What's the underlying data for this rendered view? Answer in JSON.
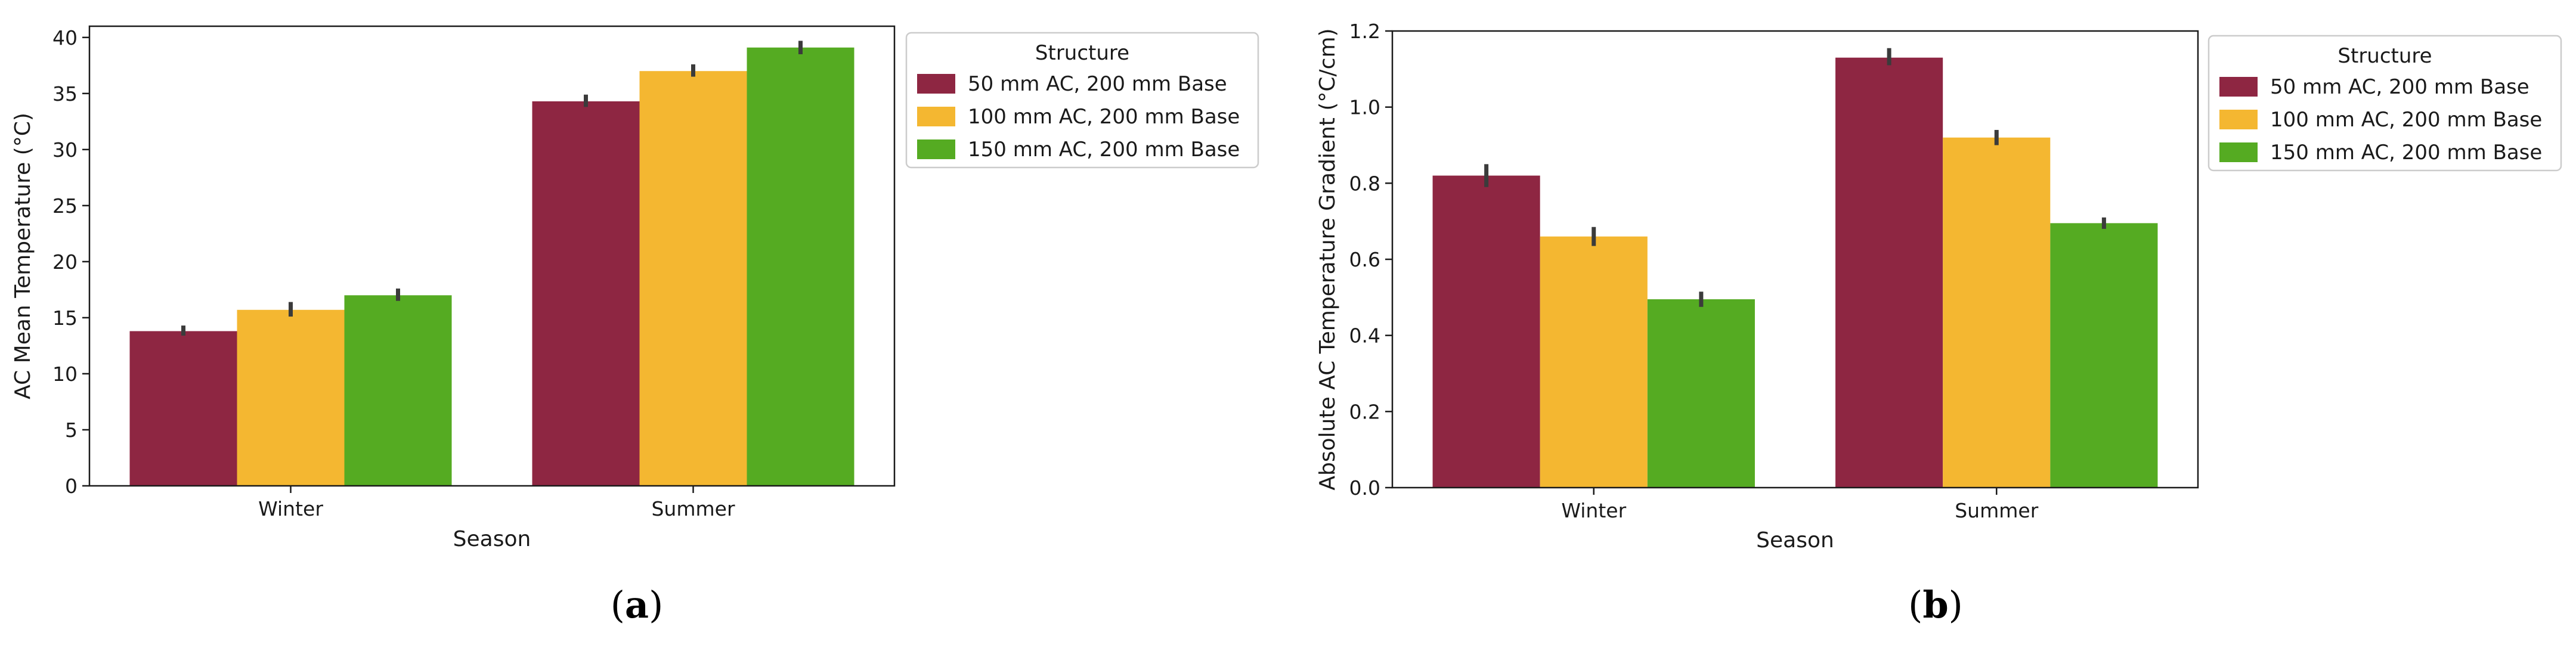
{
  "colors": {
    "structure_50": "#8e2642",
    "structure_100": "#f4b731",
    "structure_150": "#55ab22",
    "error_bar": "#3b3b3b",
    "axes": "#1a1a1a"
  },
  "panel_labels": [
    {
      "open": "(",
      "letter": "a",
      "close": ")"
    },
    {
      "open": "(",
      "letter": "b",
      "close": ")"
    }
  ],
  "chart_data": [
    {
      "type": "bar",
      "panel": "a",
      "xlabel": "Season",
      "ylabel": "AC Mean Temperature (°C)",
      "ylim": [
        0,
        41
      ],
      "yticks": [
        0,
        5,
        10,
        15,
        20,
        25,
        30,
        35,
        40
      ],
      "ytick_labels": [
        "0",
        "5",
        "10",
        "15",
        "20",
        "25",
        "30",
        "35",
        "40"
      ],
      "categories": [
        "Winter",
        "Summer"
      ],
      "grid": false,
      "legend": {
        "title": "Structure",
        "placement": "outside right, top"
      },
      "series": [
        {
          "name": "50 mm AC, 200 mm Base",
          "color": "#8e2642",
          "values": [
            13.8,
            34.3
          ],
          "err_low": [
            13.4,
            33.8
          ],
          "err_high": [
            14.3,
            34.9
          ]
        },
        {
          "name": "100 mm AC, 200 mm Base",
          "color": "#f4b731",
          "values": [
            15.7,
            37.0
          ],
          "err_low": [
            15.1,
            36.5
          ],
          "err_high": [
            16.4,
            37.6
          ]
        },
        {
          "name": "150 mm AC, 200 mm Base",
          "color": "#55ab22",
          "values": [
            17.0,
            39.1
          ],
          "err_low": [
            16.5,
            38.5
          ],
          "err_high": [
            17.6,
            39.7
          ]
        }
      ]
    },
    {
      "type": "bar",
      "panel": "b",
      "xlabel": "Season",
      "ylabel": "Absolute AC Temperature Gradient (°C/cm)",
      "ylim": [
        0,
        1.2
      ],
      "yticks": [
        0.0,
        0.2,
        0.4,
        0.6,
        0.8,
        1.0,
        1.2
      ],
      "ytick_labels": [
        "0.0",
        "0.2",
        "0.4",
        "0.6",
        "0.8",
        "1.0",
        "1.2"
      ],
      "categories": [
        "Winter",
        "Summer"
      ],
      "grid": false,
      "legend": {
        "title": "Structure",
        "placement": "outside right, top"
      },
      "series": [
        {
          "name": "50 mm AC, 200 mm Base",
          "color": "#8e2642",
          "values": [
            0.82,
            1.13
          ],
          "err_low": [
            0.79,
            1.11
          ],
          "err_high": [
            0.85,
            1.155
          ]
        },
        {
          "name": "100 mm AC, 200 mm Base",
          "color": "#f4b731",
          "values": [
            0.66,
            0.92
          ],
          "err_low": [
            0.635,
            0.9
          ],
          "err_high": [
            0.685,
            0.94
          ]
        },
        {
          "name": "150 mm AC, 200 mm Base",
          "color": "#55ab22",
          "values": [
            0.495,
            0.695
          ],
          "err_low": [
            0.475,
            0.68
          ],
          "err_high": [
            0.515,
            0.71
          ]
        }
      ]
    }
  ]
}
